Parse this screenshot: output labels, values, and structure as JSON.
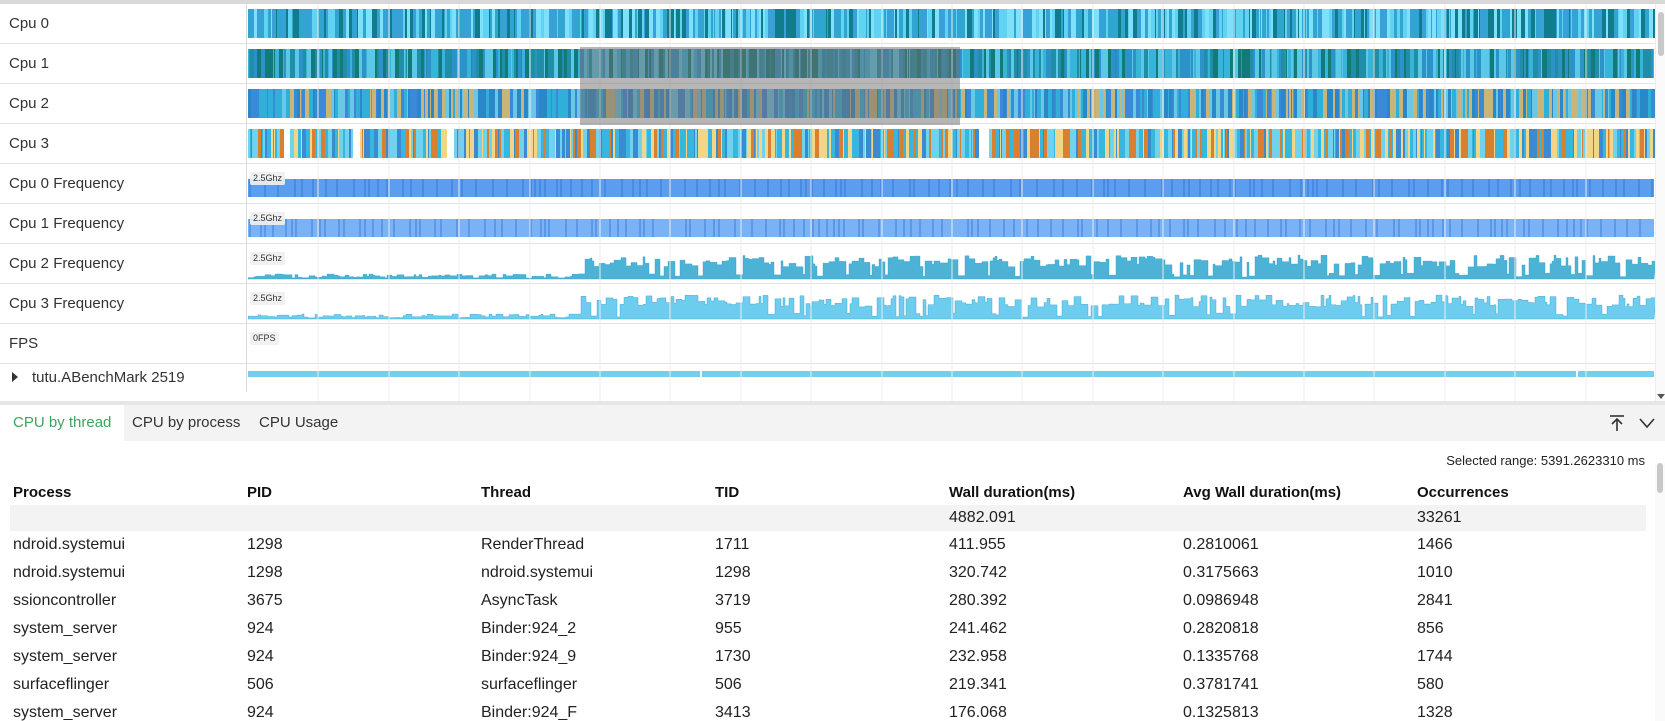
{
  "rows": [
    {
      "label": "Cpu 0",
      "kind": "cpu",
      "palette": [
        "#5fd3f1",
        "#2fa6cf",
        "#117c8b",
        "#7fe0fb",
        "#3aa0d8"
      ]
    },
    {
      "label": "Cpu 1",
      "kind": "cpu",
      "palette": [
        "#1f8ea6",
        "#137a7a",
        "#37b5d8",
        "#5cc8e8",
        "#2c92c7"
      ]
    },
    {
      "label": "Cpu 2",
      "kind": "cpu",
      "palette": [
        "#30b0d8",
        "#2a88c8",
        "#6ac7e6",
        "#3a8ad8",
        "#c9b47a"
      ]
    },
    {
      "label": "Cpu 3",
      "kind": "cpu",
      "palette": [
        "#37b7dd",
        "#f1d68a",
        "#3a8bcf",
        "#d8802f",
        "#6fd3ee"
      ]
    },
    {
      "label": "Cpu 0 Frequency",
      "kind": "freq-flat",
      "badge": "2.5Ghz",
      "color": "#5b9def"
    },
    {
      "label": "Cpu 1 Frequency",
      "kind": "freq-flat",
      "badge": "2.5Ghz",
      "color": "#7ab3f5"
    },
    {
      "label": "Cpu 2 Frequency",
      "kind": "freq-var",
      "badge": "2.5Ghz",
      "color": "#4cb3d6"
    },
    {
      "label": "Cpu 3 Frequency",
      "kind": "freq-var",
      "badge": "2.5Ghz",
      "color": "#6ccdee"
    },
    {
      "label": "FPS",
      "kind": "fps",
      "badge": "0FPS"
    },
    {
      "label": "tutu.ABenchMark 2519",
      "kind": "process",
      "color": "#72d0ee"
    }
  ],
  "tabs": [
    {
      "label": "CPU by thread",
      "active": true
    },
    {
      "label": "CPU by process",
      "active": false
    },
    {
      "label": "CPU Usage",
      "active": false
    }
  ],
  "icons": {
    "expand": "pin-top-icon",
    "collapse": "chevron-down-icon"
  },
  "selected_range": "Selected range: 5391.2623310 ms",
  "table": {
    "columns": [
      "Process",
      "PID",
      "Thread",
      "TID",
      "Wall duration(ms)",
      "Avg Wall duration(ms)",
      "Occurrences"
    ],
    "summary": [
      "",
      "",
      "",
      "",
      "4882.091",
      "",
      "33261"
    ],
    "rows": [
      [
        "ndroid.systemui",
        "1298",
        "RenderThread",
        "1711",
        "411.955",
        "0.2810061",
        "1466"
      ],
      [
        "ndroid.systemui",
        "1298",
        "ndroid.systemui",
        "1298",
        "320.742",
        "0.3175663",
        "1010"
      ],
      [
        "ssioncontroller",
        "3675",
        "AsyncTask",
        "3719",
        "280.392",
        "0.0986948",
        "2841"
      ],
      [
        "system_server",
        "924",
        "Binder:924_2",
        "955",
        "241.462",
        "0.2820818",
        "856"
      ],
      [
        "system_server",
        "924",
        "Binder:924_9",
        "1730",
        "232.958",
        "0.1335768",
        "1744"
      ],
      [
        "surfaceflinger",
        "506",
        "surfaceflinger",
        "506",
        "219.341",
        "0.3781741",
        "580"
      ],
      [
        "system_server",
        "924",
        "Binder:924_F",
        "3413",
        "176.068",
        "0.1325813",
        "1328"
      ]
    ]
  },
  "colors": {
    "active_tab": "#3aa55c",
    "selection_overlay": "#6e6e6e"
  }
}
